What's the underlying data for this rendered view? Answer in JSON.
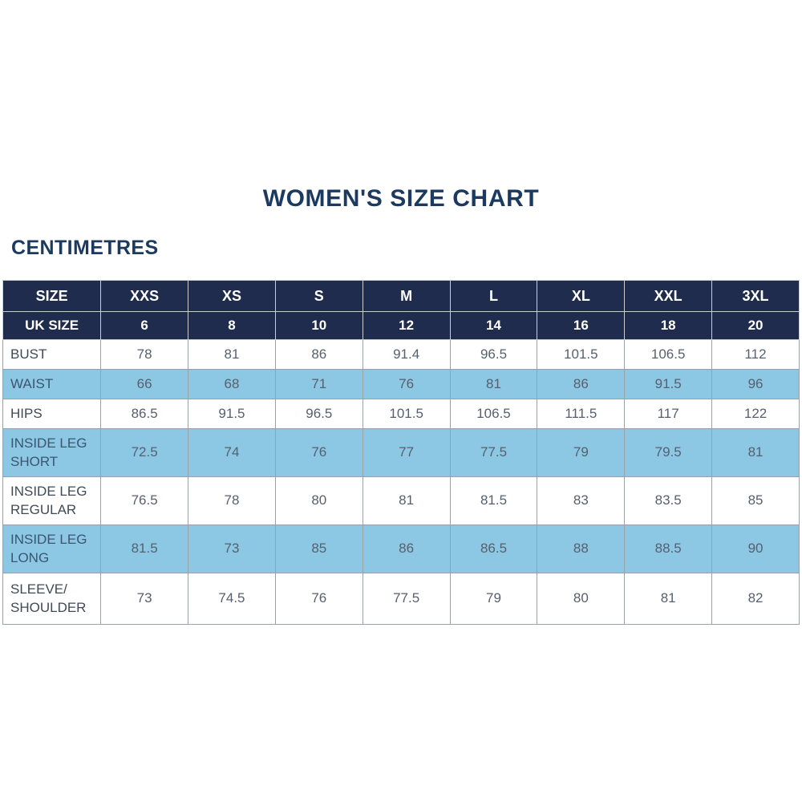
{
  "page": {
    "title": "WOMEN'S SIZE CHART",
    "unit_label": "CENTIMETRES"
  },
  "colors": {
    "title_text": "#1c3a5f",
    "header_bg": "#1f2c4e",
    "header_text": "#ffffff",
    "row_alt_bg": "#8cc7e4",
    "grid_border": "#9aa0a8",
    "cell_text": "#57606e",
    "label_text": "#3f4a57"
  },
  "chart_data": {
    "type": "table",
    "title": "WOMEN'S SIZE CHART",
    "unit_label": "CENTIMETRES",
    "size_row": {
      "label": "SIZE",
      "values": [
        "XXS",
        "XS",
        "S",
        "M",
        "L",
        "XL",
        "XXL",
        "3XL"
      ]
    },
    "uk_size_row": {
      "label": "UK SIZE",
      "values": [
        6,
        8,
        10,
        12,
        14,
        16,
        18,
        20
      ]
    },
    "measurement_rows": [
      {
        "label": "BUST",
        "values": [
          78,
          81,
          86,
          91.4,
          96.5,
          101.5,
          106.5,
          112
        ]
      },
      {
        "label": "WAIST",
        "values": [
          66,
          68,
          71,
          76,
          81,
          86,
          91.5,
          96
        ]
      },
      {
        "label": "HIPS",
        "values": [
          86.5,
          91.5,
          96.5,
          101.5,
          106.5,
          111.5,
          117,
          122
        ]
      },
      {
        "label": "INSIDE LEG SHORT",
        "values": [
          72.5,
          74,
          76,
          77,
          77.5,
          79,
          79.5,
          81
        ]
      },
      {
        "label": "INSIDE LEG REGULAR",
        "values": [
          76.5,
          78,
          80,
          81,
          81.5,
          83,
          83.5,
          85
        ]
      },
      {
        "label": "INSIDE LEG LONG",
        "values": [
          81.5,
          73,
          85,
          86,
          86.5,
          88,
          88.5,
          90
        ]
      },
      {
        "label": "SLEEVE/ SHOULDER",
        "values": [
          73,
          74.5,
          76,
          77.5,
          79,
          80,
          81,
          82
        ]
      }
    ]
  }
}
